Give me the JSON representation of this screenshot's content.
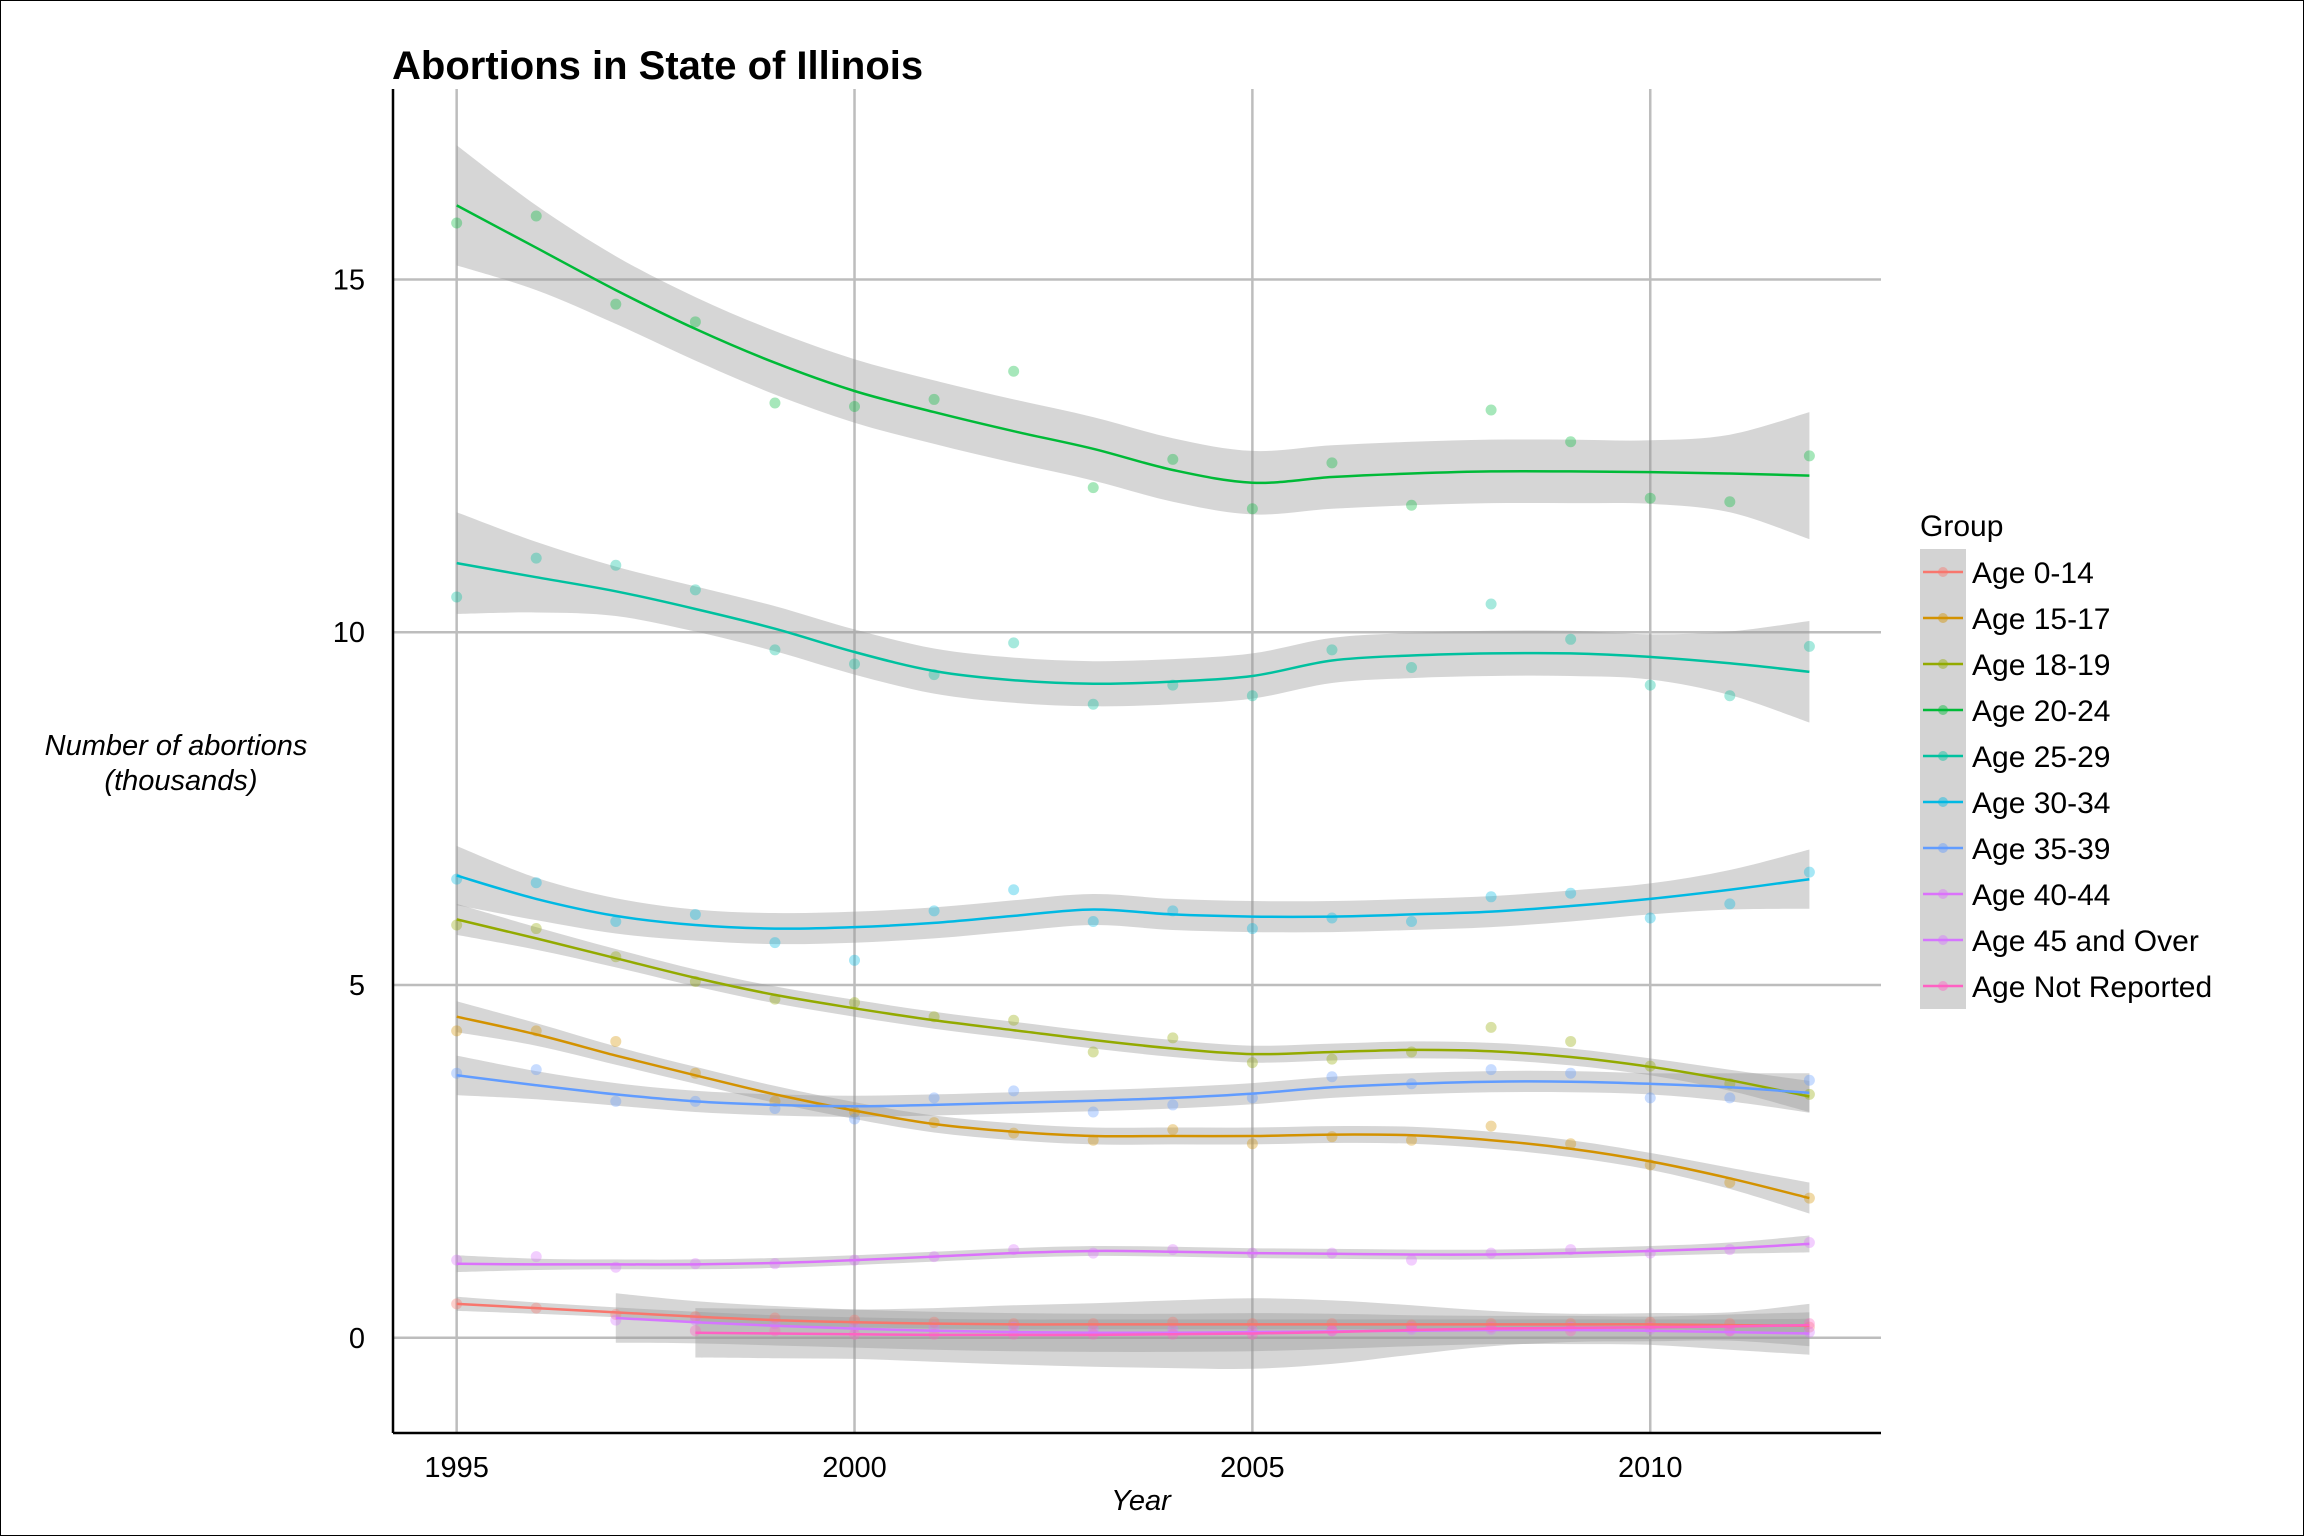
{
  "chart_data": {
    "type": "line",
    "title": "Abortions in State of Illinois",
    "xlabel": "Year",
    "ylabel_line1": "Number of abortions",
    "ylabel_line2": "(thousands)",
    "xlim": [
      1994.2,
      2012.9
    ],
    "ylim": [
      -1.35,
      17.7
    ],
    "x_ticks": [
      1995,
      2000,
      2005,
      2010
    ],
    "y_ticks": [
      0,
      5,
      10,
      15
    ],
    "grid": true,
    "smoothing": "loess with shaded confidence band",
    "legend": {
      "title": "Group",
      "position": "right"
    },
    "x": [
      1995,
      1996,
      1997,
      1998,
      1999,
      2000,
      2001,
      2002,
      2003,
      2004,
      2005,
      2006,
      2007,
      2008,
      2009,
      2010,
      2011,
      2012
    ],
    "series": [
      {
        "name": "Age 0-14",
        "color": "#F8766D",
        "points": [
          0.48,
          0.42,
          0.33,
          0.3,
          0.28,
          0.25,
          0.22,
          0.2,
          0.2,
          0.22,
          0.2,
          0.2,
          0.18,
          0.2,
          0.2,
          0.22,
          0.2,
          0.15
        ],
        "fit": [
          0.48,
          0.42,
          0.36,
          0.3,
          0.25,
          0.22,
          0.2,
          0.19,
          0.19,
          0.19,
          0.19,
          0.19,
          0.19,
          0.19,
          0.19,
          0.19,
          0.18,
          0.17
        ],
        "band": [
          0.1,
          0.08,
          0.07,
          0.07,
          0.07,
          0.07,
          0.07,
          0.07,
          0.07,
          0.07,
          0.07,
          0.07,
          0.07,
          0.07,
          0.07,
          0.07,
          0.08,
          0.1
        ]
      },
      {
        "name": "Age 15-17",
        "color": "#D39200",
        "points": [
          4.35,
          4.35,
          4.2,
          3.75,
          3.35,
          3.2,
          3.05,
          2.9,
          2.8,
          2.95,
          2.75,
          2.85,
          2.8,
          3.0,
          2.75,
          2.45,
          2.2,
          1.98
        ],
        "fit": [
          4.55,
          4.3,
          4.0,
          3.72,
          3.45,
          3.22,
          3.03,
          2.92,
          2.86,
          2.86,
          2.86,
          2.88,
          2.87,
          2.8,
          2.68,
          2.5,
          2.26,
          1.98
        ],
        "band": [
          0.22,
          0.16,
          0.13,
          0.12,
          0.12,
          0.12,
          0.12,
          0.12,
          0.12,
          0.12,
          0.12,
          0.12,
          0.12,
          0.12,
          0.12,
          0.12,
          0.15,
          0.22
        ]
      },
      {
        "name": "Age 18-19",
        "color": "#93AA00",
        "points": [
          5.85,
          5.8,
          5.4,
          5.05,
          4.8,
          4.75,
          4.55,
          4.5,
          4.05,
          4.25,
          3.9,
          3.95,
          4.05,
          4.4,
          4.2,
          3.85,
          3.6,
          3.45
        ],
        "fit": [
          5.93,
          5.66,
          5.38,
          5.1,
          4.86,
          4.67,
          4.5,
          4.36,
          4.22,
          4.1,
          4.02,
          4.05,
          4.08,
          4.06,
          3.98,
          3.84,
          3.65,
          3.42
        ],
        "band": [
          0.22,
          0.16,
          0.13,
          0.12,
          0.12,
          0.12,
          0.12,
          0.12,
          0.12,
          0.12,
          0.12,
          0.12,
          0.12,
          0.12,
          0.12,
          0.12,
          0.15,
          0.22
        ]
      },
      {
        "name": "Age 20-24",
        "color": "#00BA38",
        "points": [
          15.8,
          15.9,
          14.65,
          14.4,
          13.25,
          13.2,
          13.3,
          13.7,
          12.05,
          12.45,
          11.75,
          12.4,
          11.8,
          13.15,
          12.7,
          11.9,
          11.85,
          12.5
        ],
        "fit": [
          16.05,
          15.45,
          14.85,
          14.3,
          13.82,
          13.42,
          13.12,
          12.85,
          12.6,
          12.3,
          12.12,
          12.2,
          12.25,
          12.28,
          12.28,
          12.27,
          12.25,
          12.22
        ],
        "band": [
          0.85,
          0.6,
          0.48,
          0.45,
          0.45,
          0.45,
          0.45,
          0.45,
          0.45,
          0.45,
          0.45,
          0.45,
          0.45,
          0.45,
          0.45,
          0.45,
          0.55,
          0.9
        ]
      },
      {
        "name": "Age 25-29",
        "color": "#00C19F",
        "points": [
          10.5,
          11.05,
          10.95,
          10.6,
          9.75,
          9.55,
          9.4,
          9.85,
          8.98,
          9.25,
          9.1,
          9.75,
          9.5,
          10.4,
          9.9,
          9.25,
          9.1,
          9.8
        ],
        "fit": [
          10.98,
          10.78,
          10.58,
          10.33,
          10.05,
          9.72,
          9.45,
          9.32,
          9.27,
          9.3,
          9.38,
          9.6,
          9.67,
          9.7,
          9.7,
          9.65,
          9.56,
          9.44
        ],
        "band": [
          0.72,
          0.5,
          0.35,
          0.32,
          0.32,
          0.32,
          0.32,
          0.32,
          0.32,
          0.32,
          0.32,
          0.32,
          0.32,
          0.32,
          0.32,
          0.32,
          0.45,
          0.72
        ]
      },
      {
        "name": "Age 30-34",
        "color": "#00B9E3",
        "points": [
          6.5,
          6.45,
          5.9,
          6.0,
          5.6,
          5.35,
          6.05,
          6.35,
          5.9,
          6.05,
          5.8,
          5.95,
          5.9,
          6.25,
          6.3,
          5.95,
          6.15,
          6.6
        ],
        "fit": [
          6.55,
          6.22,
          5.98,
          5.85,
          5.8,
          5.82,
          5.88,
          5.98,
          6.07,
          6.0,
          5.97,
          5.97,
          6.0,
          6.04,
          6.12,
          6.22,
          6.35,
          6.5
        ],
        "band": [
          0.42,
          0.3,
          0.25,
          0.22,
          0.22,
          0.22,
          0.22,
          0.22,
          0.22,
          0.22,
          0.22,
          0.22,
          0.22,
          0.22,
          0.22,
          0.22,
          0.28,
          0.42
        ]
      },
      {
        "name": "Age 35-39",
        "color": "#619CFF",
        "points": [
          3.75,
          3.8,
          3.35,
          3.35,
          3.25,
          3.1,
          3.4,
          3.5,
          3.2,
          3.3,
          3.4,
          3.7,
          3.6,
          3.8,
          3.75,
          3.4,
          3.4,
          3.65
        ],
        "fit": [
          3.72,
          3.58,
          3.45,
          3.35,
          3.3,
          3.28,
          3.3,
          3.33,
          3.36,
          3.4,
          3.46,
          3.55,
          3.6,
          3.63,
          3.63,
          3.6,
          3.55,
          3.47
        ],
        "band": [
          0.28,
          0.2,
          0.16,
          0.15,
          0.15,
          0.15,
          0.15,
          0.15,
          0.15,
          0.15,
          0.15,
          0.15,
          0.15,
          0.15,
          0.15,
          0.15,
          0.2,
          0.28
        ]
      },
      {
        "name": "Age 40-44",
        "color": "#DB72FB",
        "points": [
          1.1,
          1.15,
          1.0,
          1.05,
          1.05,
          1.1,
          1.15,
          1.25,
          1.2,
          1.25,
          1.2,
          1.2,
          1.1,
          1.2,
          1.25,
          1.2,
          1.25,
          1.35
        ],
        "fit": [
          1.05,
          1.04,
          1.04,
          1.04,
          1.06,
          1.1,
          1.15,
          1.2,
          1.23,
          1.22,
          1.2,
          1.19,
          1.18,
          1.18,
          1.2,
          1.23,
          1.27,
          1.33
        ],
        "band": [
          0.12,
          0.08,
          0.07,
          0.07,
          0.07,
          0.07,
          0.07,
          0.07,
          0.07,
          0.07,
          0.07,
          0.07,
          0.07,
          0.07,
          0.07,
          0.07,
          0.08,
          0.12
        ]
      },
      {
        "name": "Age 45 and Over",
        "color": "#D576FF",
        "points": [
          null,
          null,
          0.25,
          0.25,
          0.2,
          0.15,
          0.15,
          0.15,
          0.12,
          0.12,
          0.1,
          0.1,
          0.12,
          0.12,
          0.15,
          0.12,
          0.1,
          0.08
        ],
        "fit": [
          null,
          null,
          0.28,
          0.22,
          0.17,
          0.13,
          0.1,
          0.08,
          0.07,
          0.07,
          0.08,
          0.09,
          0.1,
          0.11,
          0.11,
          0.1,
          0.08,
          0.06
        ],
        "band": [
          null,
          null,
          0.35,
          0.3,
          0.28,
          0.27,
          0.27,
          0.27,
          0.27,
          0.27,
          0.27,
          0.25,
          0.22,
          0.2,
          0.2,
          0.2,
          0.25,
          0.3
        ]
      },
      {
        "name": "Age Not Reported",
        "color": "#FF61C3",
        "points": [
          null,
          null,
          null,
          0.1,
          0.1,
          0.05,
          0.05,
          0.05,
          0.05,
          0.05,
          0.05,
          0.1,
          0.15,
          0.15,
          0.1,
          0.15,
          0.1,
          0.2
        ],
        "fit": [
          null,
          null,
          null,
          0.07,
          0.06,
          0.05,
          0.04,
          0.04,
          0.04,
          0.05,
          0.06,
          0.08,
          0.11,
          0.13,
          0.14,
          0.15,
          0.16,
          0.18
        ],
        "band": [
          null,
          null,
          null,
          0.35,
          0.35,
          0.35,
          0.38,
          0.42,
          0.45,
          0.48,
          0.5,
          0.45,
          0.35,
          0.25,
          0.2,
          0.2,
          0.2,
          0.3
        ]
      }
    ]
  }
}
